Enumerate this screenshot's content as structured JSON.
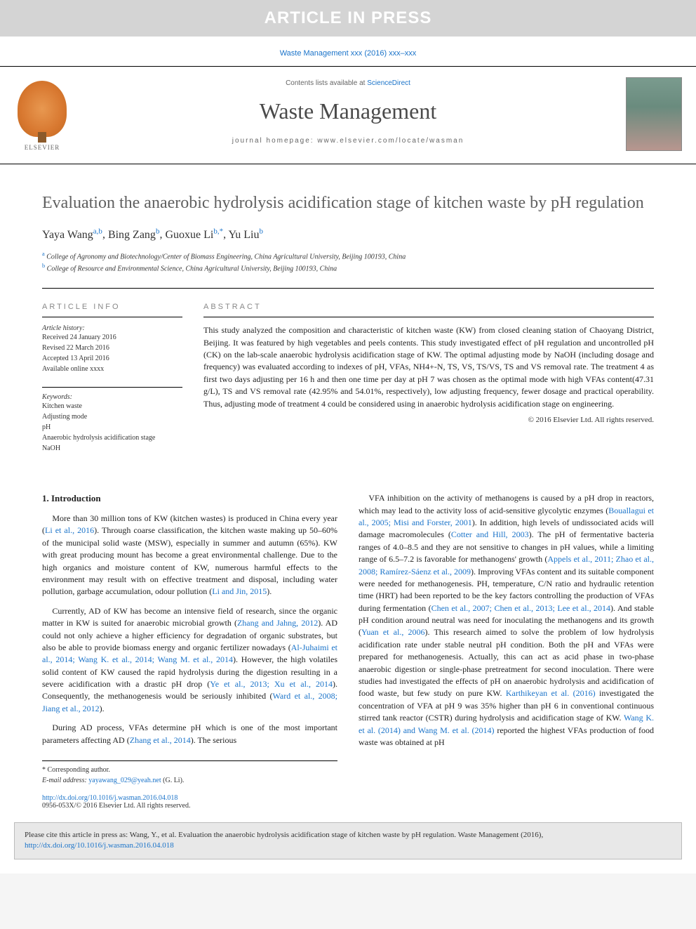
{
  "banner": {
    "text": "ARTICLE IN PRESS"
  },
  "journal_ref": "Waste Management xxx (2016) xxx–xxx",
  "header": {
    "contents_prefix": "Contents lists available at ",
    "contents_link": "ScienceDirect",
    "journal_name": "Waste Management",
    "homepage_label": "journal homepage: www.elsevier.com/locate/wasman",
    "publisher_name": "ELSEVIER"
  },
  "title": "Evaluation the anaerobic hydrolysis acidification stage of kitchen waste by pH regulation",
  "authors_html": "Yaya Wang",
  "authors": [
    {
      "name": "Yaya Wang",
      "sup": "a,b"
    },
    {
      "name": "Bing Zang",
      "sup": "b"
    },
    {
      "name": "Guoxue Li",
      "sup": "b,*"
    },
    {
      "name": "Yu Liu",
      "sup": "b"
    }
  ],
  "affiliations": [
    {
      "sup": "a",
      "text": "College of Agronomy and Biotechnology/Center of Biomass Engineering, China Agricultural University, Beijing 100193, China"
    },
    {
      "sup": "b",
      "text": "College of Resource and Environmental Science, China Agricultural University, Beijing 100193, China"
    }
  ],
  "article_info": {
    "heading": "ARTICLE INFO",
    "history_label": "Article history:",
    "history": [
      "Received 24 January 2016",
      "Revised 22 March 2016",
      "Accepted 13 April 2016",
      "Available online xxxx"
    ],
    "keywords_label": "Keywords:",
    "keywords": [
      "Kitchen waste",
      "Adjusting mode",
      "pH",
      "Anaerobic hydrolysis acidification stage",
      "NaOH"
    ]
  },
  "abstract": {
    "heading": "ABSTRACT",
    "text": "This study analyzed the composition and characteristic of kitchen waste (KW) from closed cleaning station of Chaoyang District, Beijing. It was featured by high vegetables and peels contents. This study investigated effect of pH regulation and uncontrolled pH (CK) on the lab-scale anaerobic hydrolysis acidification stage of KW. The optimal adjusting mode by NaOH (including dosage and frequency) was evaluated according to indexes of pH, VFAs, NH4+-N, TS, VS, TS/VS, TS and VS removal rate. The treatment 4 as first two days adjusting per 16 h and then one time per day at pH 7 was chosen as the optimal mode with high VFAs content(47.31 g/L), TS and VS removal rate (42.95% and 54.01%, respectively), low adjusting frequency, fewer dosage and practical operability. Thus, adjusting mode of treatment 4 could be considered using in anaerobic hydrolysis acidification stage on engineering.",
    "copyright": "© 2016 Elsevier Ltd. All rights reserved."
  },
  "body": {
    "intro_heading": "1. Introduction",
    "left_paras": [
      "More than 30 million tons of KW (kitchen wastes) is produced in China every year (<span class=\"cite\">Li et al., 2016</span>). Through coarse classification, the kitchen waste making up 50–60% of the municipal solid waste (MSW), especially in summer and autumn (65%). KW with great producing mount has become a great environmental challenge. Due to the high organics and moisture content of KW, numerous harmful effects to the environment may result with on effective treatment and disposal, including water pollution, garbage accumulation, odour pollution (<span class=\"cite\">Li and Jin, 2015</span>).",
      "Currently, AD of KW has become an intensive field of research, since the organic matter in KW is suited for anaerobic microbial growth (<span class=\"cite\">Zhang and Jahng, 2012</span>). AD could not only achieve a higher efficiency for degradation of organic substrates, but also be able to provide biomass energy and organic fertilizer nowadays (<span class=\"cite\">Al-Juhaimi et al., 2014; Wang K. et al., 2014; Wang M. et al., 2014</span>). However, the high volatiles solid content of KW caused the rapid hydrolysis during the digestion resulting in a severe acidification with a drastic pH drop (<span class=\"cite\">Ye et al., 2013; Xu et al., 2014</span>). Consequently, the methanogenesis would be seriously inhibited (<span class=\"cite\">Ward et al., 2008; Jiang et al., 2012</span>).",
      "During AD process, VFAs determine pH which is one of the most important parameters affecting AD (<span class=\"cite\">Zhang et al., 2014</span>). The serious"
    ],
    "right_paras": [
      "VFA inhibition on the activity of methanogens is caused by a pH drop in reactors, which may lead to the activity loss of acid-sensitive glycolytic enzymes (<span class=\"cite\">Bouallagui et al., 2005; Misi and Forster, 2001</span>). In addition, high levels of undissociated acids will damage macromolecules (<span class=\"cite\">Cotter and Hill, 2003</span>). The pH of fermentative bacteria ranges of 4.0–8.5 and they are not sensitive to changes in pH values, while a limiting range of 6.5–7.2 is favorable for methanogens' growth (<span class=\"cite\">Appels et al., 2011; Zhao et al., 2008; Ramírez-Sáenz et al., 2009</span>). Improving VFAs content and its suitable component were needed for methanogenesis. PH, temperature, C/N ratio and hydraulic retention time (HRT) had been reported to be the key factors controlling the production of VFAs during fermentation (<span class=\"cite\">Chen et al., 2007; Chen et al., 2013; Lee et al., 2014</span>). And stable pH condition around neutral was need for inoculating the methanogens and its growth (<span class=\"cite\">Yuan et al., 2006</span>). This research aimed to solve the problem of low hydrolysis acidification rate under stable neutral pH condition. Both the pH and VFAs were prepared for methanogenesis. Actually, this can act as acid phase in two-phase anaerobic digestion or single-phase pretreatment for second inoculation. There were studies had investigated the effects of pH on anaerobic hydrolysis and acidification of food waste, but few study on pure KW. <span class=\"cite\">Karthikeyan et al. (2016)</span> investigated the concentration of VFA at pH 9 was 35% higher than pH 6 in conventional continuous stirred tank reactor (CSTR) during hydrolysis and acidification stage of KW. <span class=\"cite\">Wang K. et al. (2014) and Wang M. et al. (2014)</span> reported the highest VFAs production of food waste was obtained at pH"
    ]
  },
  "corresp": {
    "label": "* Corresponding author.",
    "email_label": "E-mail address: ",
    "email": "yayawang_029@yeah.net",
    "email_suffix": " (G. Li)."
  },
  "doi": {
    "url": "http://dx.doi.org/10.1016/j.wasman.2016.04.018",
    "issn_line": "0956-053X/© 2016 Elsevier Ltd. All rights reserved."
  },
  "cite_footer": {
    "prefix": "Please cite this article in press as: Wang, Y., et al. Evaluation the anaerobic hydrolysis acidification stage of kitchen waste by pH regulation. Waste Management (2016), ",
    "url": "http://dx.doi.org/10.1016/j.wasman.2016.04.018"
  },
  "colors": {
    "link": "#1a73c9",
    "banner_bg": "#d4d4d4",
    "title_gray": "#606060",
    "text": "#222222",
    "footer_bg": "#e8e8e8"
  },
  "typography": {
    "title_fontsize": 24,
    "body_fontsize": 12,
    "abstract_fontsize": 12,
    "info_fontsize": 10,
    "journal_name_fontsize": 32
  }
}
